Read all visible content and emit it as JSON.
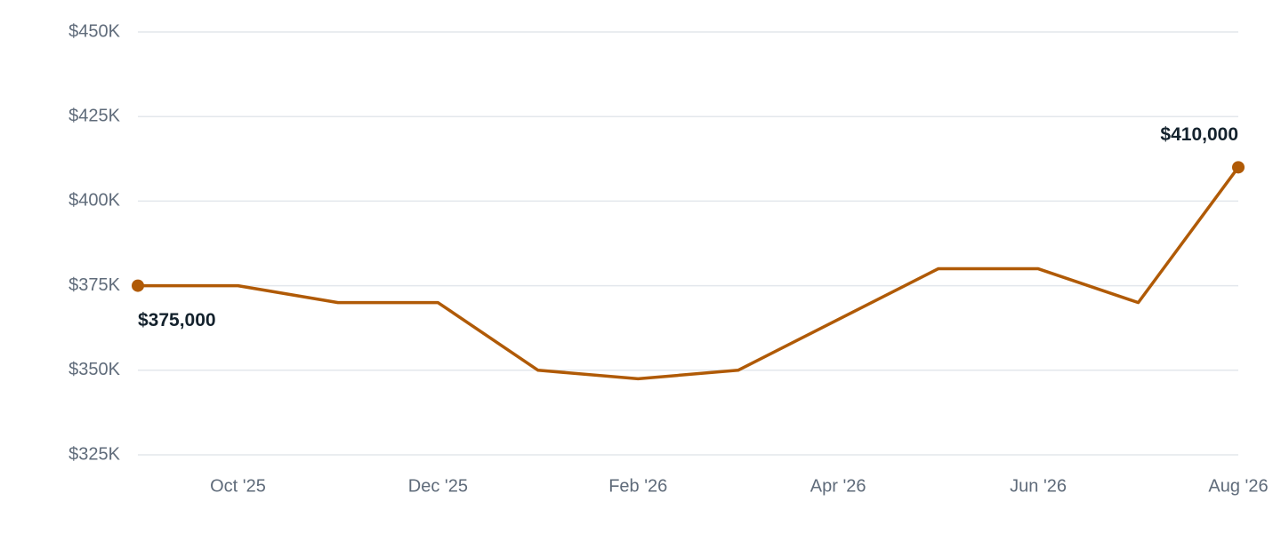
{
  "chart_data": {
    "type": "line",
    "categories": [
      null,
      "Oct '25",
      null,
      "Dec '25",
      null,
      "Feb '26",
      null,
      "Apr '26",
      null,
      "Jun '26",
      null,
      "Aug '26"
    ],
    "series": [
      {
        "color": "#b05a06",
        "values": [
          375000,
          375000,
          370000,
          370000,
          350000,
          347500,
          350000,
          365000,
          380000,
          380000,
          370000,
          410000
        ],
        "value_labels": [
          "$375,000",
          null,
          null,
          null,
          null,
          null,
          null,
          null,
          null,
          null,
          null,
          "$410,000"
        ]
      }
    ],
    "ylim": [
      325000,
      450000
    ],
    "yticks": [
      {
        "value": 325000,
        "label": "$325K"
      },
      {
        "value": 350000,
        "label": "$350K"
      },
      {
        "value": 375000,
        "label": "$375K"
      },
      {
        "value": 400000,
        "label": "$400K"
      },
      {
        "value": 425000,
        "label": "$425K"
      },
      {
        "value": 450000,
        "label": "$450K"
      }
    ],
    "grid": true
  }
}
